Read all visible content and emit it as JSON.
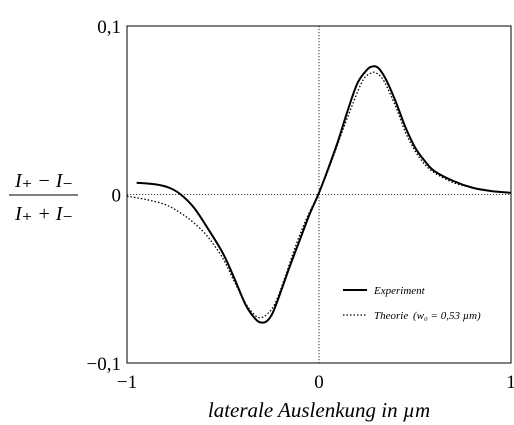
{
  "chart_data": {
    "type": "line",
    "title": "",
    "xlabel": "laterale Auslenkung in µm",
    "ylabel": {
      "numerator": "I₊ − I₋",
      "denominator": "I₊ + I₋"
    },
    "xlim": [
      -1,
      1
    ],
    "ylim": [
      -0.1,
      0.1
    ],
    "x_ticks": [
      -1,
      0,
      1
    ],
    "x_tick_labels": [
      "−1",
      "0",
      "1"
    ],
    "y_ticks": [
      -0.1,
      0,
      0.1
    ],
    "y_tick_labels": [
      "−0,1",
      "0",
      "0,1"
    ],
    "grid": false,
    "reference_lines": [
      "x = 0",
      "y = 0"
    ],
    "legend_position": "lower-right",
    "series": [
      {
        "name": "Experiment",
        "style": "solid",
        "x": [
          -0.95,
          -0.85,
          -0.78,
          -0.72,
          -0.65,
          -0.58,
          -0.5,
          -0.44,
          -0.38,
          -0.33,
          -0.3,
          -0.27,
          -0.24,
          -0.2,
          -0.15,
          -0.1,
          -0.05,
          0,
          0.05,
          0.1,
          0.15,
          0.2,
          0.25,
          0.28,
          0.31,
          0.35,
          0.4,
          0.45,
          0.5,
          0.55,
          0.6,
          0.7,
          0.8,
          0.9,
          1.0
        ],
        "y": [
          0.007,
          0.006,
          0.004,
          0.0,
          -0.008,
          -0.02,
          -0.035,
          -0.05,
          -0.066,
          -0.074,
          -0.076,
          -0.075,
          -0.07,
          -0.058,
          -0.042,
          -0.027,
          -0.012,
          0.001,
          0.016,
          0.032,
          0.05,
          0.066,
          0.074,
          0.076,
          0.075,
          0.068,
          0.055,
          0.04,
          0.028,
          0.02,
          0.014,
          0.008,
          0.004,
          0.002,
          0.001
        ]
      },
      {
        "name": "Theorie (w₀ = 0,53 µm)",
        "style": "dotted",
        "x": [
          -1.0,
          -0.9,
          -0.8,
          -0.72,
          -0.65,
          -0.58,
          -0.5,
          -0.44,
          -0.38,
          -0.33,
          -0.3,
          -0.27,
          -0.23,
          -0.18,
          -0.12,
          -0.06,
          0,
          0.06,
          0.12,
          0.18,
          0.23,
          0.27,
          0.3,
          0.34,
          0.4,
          0.45,
          0.5,
          0.55,
          0.6,
          0.7,
          0.8,
          0.9,
          1.0
        ],
        "y": [
          -0.001,
          -0.003,
          -0.006,
          -0.011,
          -0.017,
          -0.025,
          -0.038,
          -0.052,
          -0.065,
          -0.072,
          -0.073,
          -0.071,
          -0.065,
          -0.05,
          -0.03,
          -0.013,
          0.001,
          0.018,
          0.037,
          0.055,
          0.068,
          0.072,
          0.072,
          0.067,
          0.052,
          0.037,
          0.026,
          0.018,
          0.013,
          0.007,
          0.004,
          0.002,
          0.001
        ]
      }
    ]
  },
  "legend": {
    "experiment_label": "Experiment",
    "theorie_label": "Theorie",
    "theorie_formula": "(w₀ = 0,53 µm)"
  }
}
